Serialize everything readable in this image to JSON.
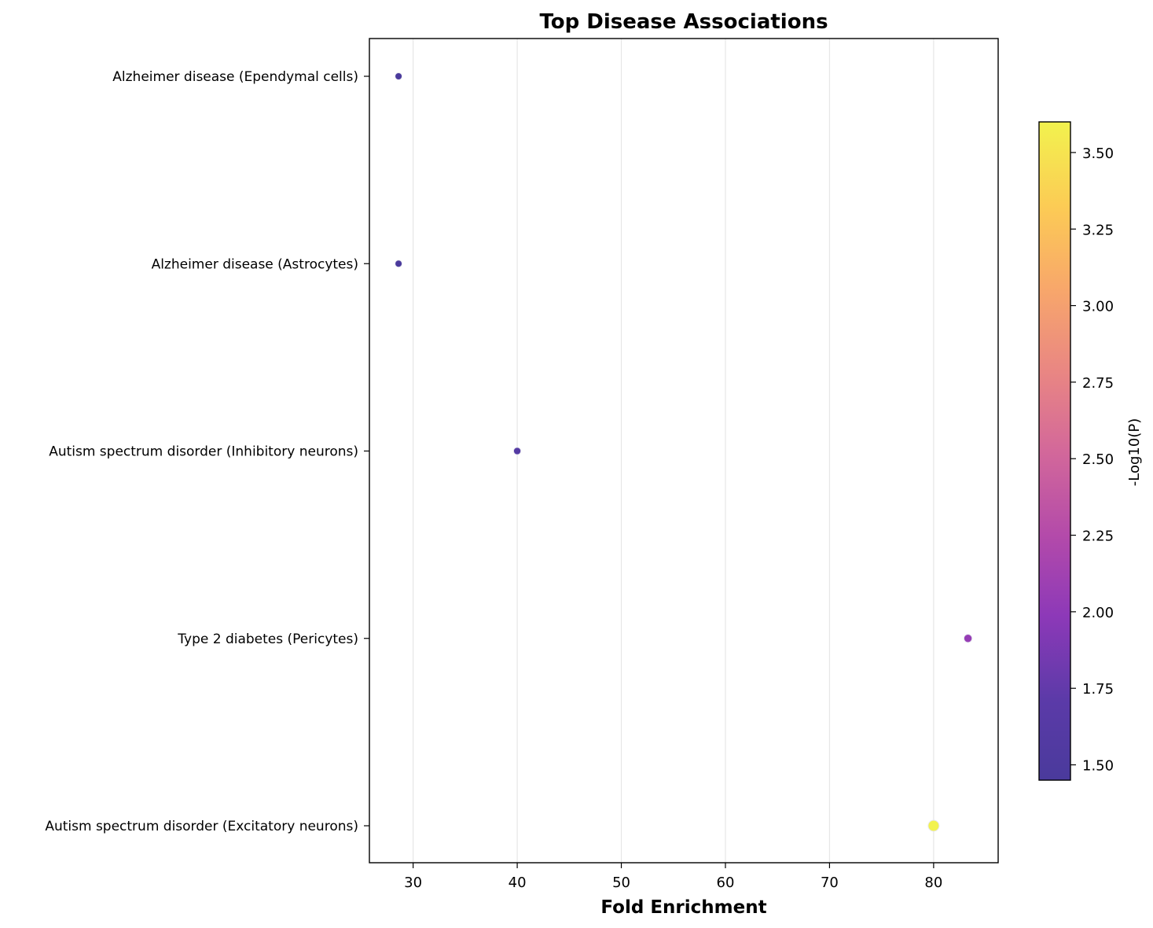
{
  "chart_data": {
    "type": "scatter",
    "title": "Top Disease Associations",
    "xlabel": "Fold Enrichment",
    "ylabel": "",
    "xlim": [
      25.8,
      86.2
    ],
    "xticks": [
      30,
      40,
      50,
      60,
      70,
      80
    ],
    "grid": "vertical",
    "categories": [
      "Alzheimer disease (Ependymal cells)",
      "Alzheimer disease (Astrocytes)",
      "Autism spectrum disorder (Inhibitory neurons)",
      "Type 2 diabetes (Pericytes)",
      "Autism spectrum disorder (Excitatory neurons)"
    ],
    "points": [
      {
        "category": "Alzheimer disease (Ependymal cells)",
        "x": 28.6,
        "neg_log10_p": 1.45
      },
      {
        "category": "Alzheimer disease (Astrocytes)",
        "x": 28.6,
        "neg_log10_p": 1.45
      },
      {
        "category": "Autism spectrum disorder (Inhibitory neurons)",
        "x": 40.0,
        "neg_log10_p": 1.6
      },
      {
        "category": "Type 2 diabetes (Pericytes)",
        "x": 83.3,
        "neg_log10_p": 2.05
      },
      {
        "category": "Autism spectrum disorder (Excitatory neurons)",
        "x": 80.0,
        "neg_log10_p": 3.6
      }
    ],
    "colorbar": {
      "label": "-Log10(P)",
      "colormap": "plasma",
      "range": [
        1.45,
        3.6
      ],
      "ticks": [
        "1.50",
        "1.75",
        "2.00",
        "2.25",
        "2.50",
        "2.75",
        "3.00",
        "3.25",
        "3.50"
      ]
    }
  }
}
